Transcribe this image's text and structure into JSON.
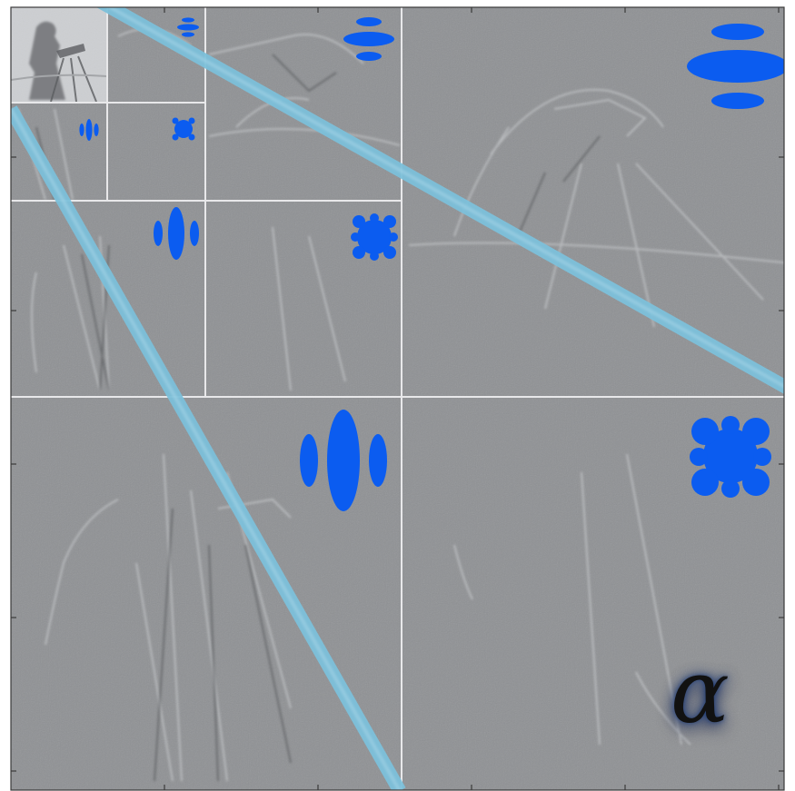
{
  "figure": {
    "annotation_symbol": "α",
    "colors": {
      "coefficient_gray": "#8f9194",
      "separator": "#e8e8ea",
      "filter_blob": "#0b5cf0",
      "diagonal_band": "#7cc0da",
      "frame": "#3a3a3a"
    },
    "subbands": [
      {
        "level": 4,
        "orientation": "approximation",
        "icon": "lowpass-image"
      },
      {
        "level": 4,
        "orientation": "horizontal",
        "icon": "horizontal-filter-icon"
      },
      {
        "level": 4,
        "orientation": "vertical",
        "icon": "vertical-filter-icon"
      },
      {
        "level": 4,
        "orientation": "diagonal",
        "icon": "diagonal-filter-icon"
      },
      {
        "level": 3,
        "orientation": "horizontal",
        "icon": "horizontal-filter-icon"
      },
      {
        "level": 3,
        "orientation": "vertical",
        "icon": "vertical-filter-icon"
      },
      {
        "level": 3,
        "orientation": "diagonal",
        "icon": "diagonal-filter-icon"
      },
      {
        "level": 2,
        "orientation": "horizontal",
        "icon": "horizontal-filter-icon"
      },
      {
        "level": 2,
        "orientation": "vertical",
        "icon": "vertical-filter-icon"
      },
      {
        "level": 2,
        "orientation": "diagonal",
        "icon": "diagonal-filter-icon"
      }
    ]
  }
}
